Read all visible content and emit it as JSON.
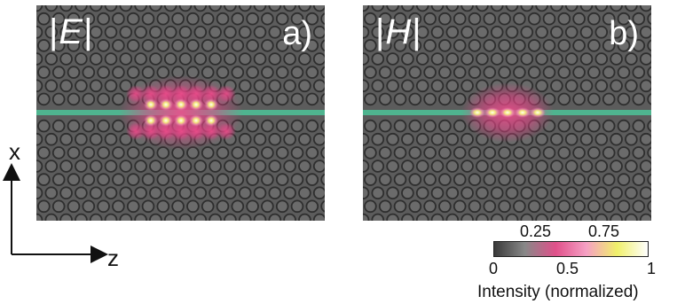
{
  "panels": [
    {
      "id": "a",
      "field_symbol": "E",
      "panel_label": "a)"
    },
    {
      "id": "b",
      "field_symbol": "H",
      "panel_label": "b)"
    }
  ],
  "axes": {
    "vertical": "x",
    "horizontal": "z"
  },
  "colorbar": {
    "title": "Intensity (normalized)",
    "ticks_bottom": [
      "0",
      "0.5",
      "1"
    ],
    "ticks_top": [
      "0.25",
      "0.75"
    ],
    "colors": [
      "#3a3a3a",
      "#888888",
      "#e0508a",
      "#f6a0c4",
      "#f0f06a",
      "#ffffff"
    ]
  },
  "colors": {
    "background_gray": "#5c5c5c",
    "waveguide": "#4fb48f",
    "hole_ring": "#2e2e2e",
    "hole_fill": "#6b6b6b"
  }
}
